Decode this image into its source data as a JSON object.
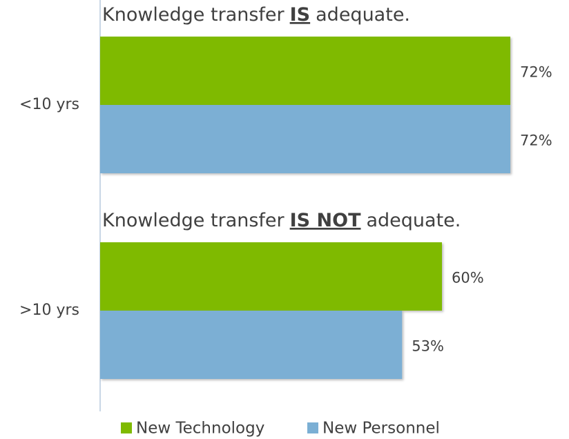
{
  "chart_data": {
    "type": "bar",
    "orientation": "horizontal",
    "categories": [
      "<10 yrs",
      ">10 yrs"
    ],
    "series": [
      {
        "name": "New Technology",
        "color": "#7fba00",
        "values": [
          72,
          60
        ],
        "value_labels": [
          "72%",
          "60%"
        ]
      },
      {
        "name": "New Personnel",
        "color": "#7bafd4",
        "values": [
          72,
          53
        ],
        "value_labels": [
          "72%",
          "53%"
        ]
      }
    ],
    "annotations": [
      {
        "text_before": "Knowledge transfer",
        "emphasis": "IS",
        "text_after": "adequate."
      },
      {
        "text_before": "Knowledge transfer",
        "emphasis": "IS NOT",
        "text_after": "adequate."
      }
    ],
    "legend": "bottom"
  }
}
